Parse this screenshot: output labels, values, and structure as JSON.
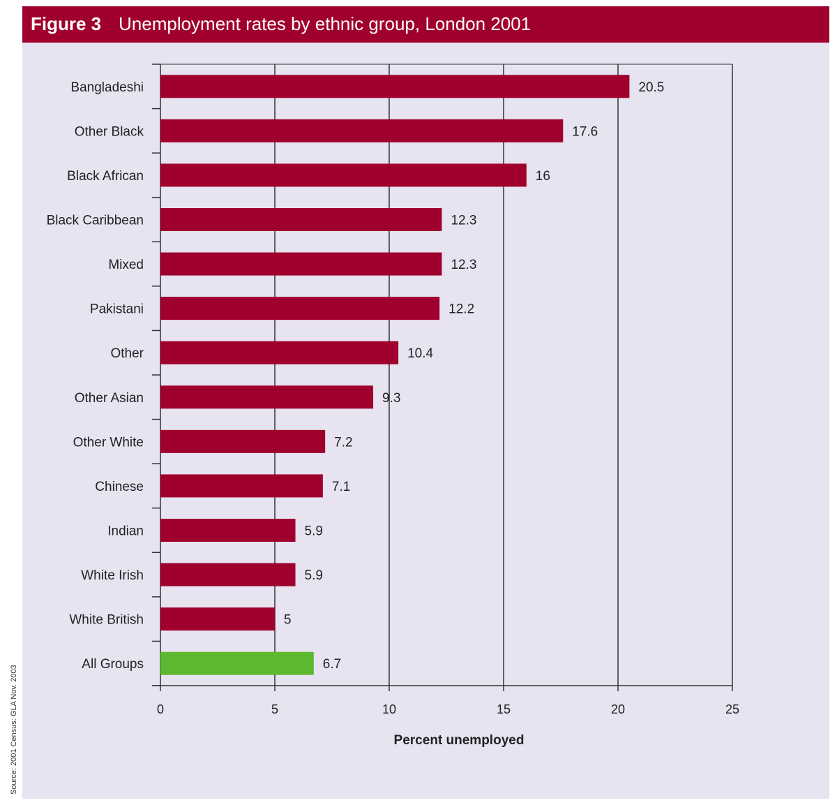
{
  "figure_label": "Figure 3",
  "figure_title": "Unemployment rates by ethnic group, London 2001",
  "source_note": "Source: 2001 Census: GLA Nov. 2003",
  "colors": {
    "header": "#a0002d",
    "panel": "#e7e3f1",
    "bar": "#a0002d",
    "highlight_bar": "#5cb82e",
    "grid": "#333333"
  },
  "chart_data": {
    "type": "bar",
    "orientation": "horizontal",
    "categories": [
      "Bangladeshi",
      "Other Black",
      "Black African",
      "Black Caribbean",
      "Mixed",
      "Pakistani",
      "Other",
      "Other Asian",
      "Other White",
      "Chinese",
      "Indian",
      "White Irish",
      "White British",
      "All Groups"
    ],
    "values": [
      20.5,
      17.6,
      16,
      12.3,
      12.3,
      12.2,
      10.4,
      9.3,
      7.2,
      7.1,
      5.9,
      5.9,
      5,
      6.7
    ],
    "value_labels": [
      "20.5",
      "17.6",
      "16",
      "12.3",
      "12.3",
      "12.2",
      "10.4",
      "9.3",
      "7.2",
      "7.1",
      "5.9",
      "5.9",
      "5",
      "6.7"
    ],
    "highlight": "All Groups",
    "xlabel": "Percent unemployed",
    "ylabel": "",
    "xlim": [
      0,
      25
    ],
    "xticks": [
      0,
      5,
      10,
      15,
      20,
      25
    ],
    "xtick_labels": [
      "0",
      "5",
      "10",
      "15",
      "20",
      "25"
    ],
    "grid": true
  }
}
